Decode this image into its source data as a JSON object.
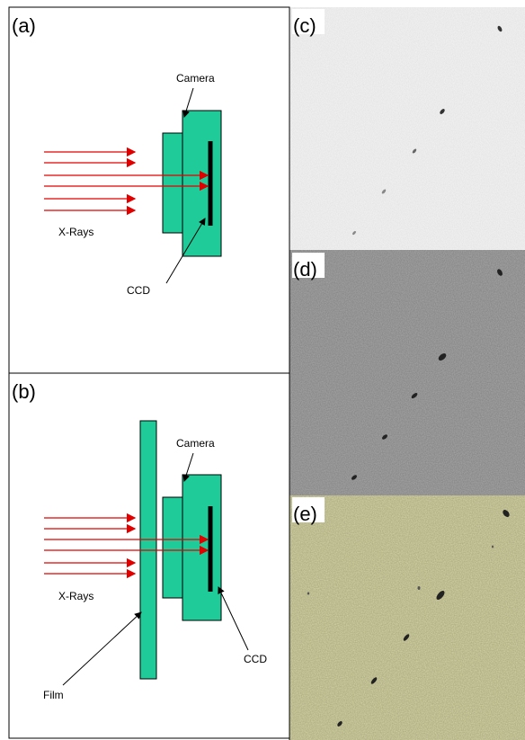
{
  "panel_a": {
    "label": "(a)",
    "camera": "Camera",
    "x_rays": "X-Rays",
    "ccd": "CCD"
  },
  "panel_b": {
    "label": "(b)",
    "camera": "Camera",
    "x_rays": "X-Rays",
    "film": "Film",
    "ccd": "CCD"
  },
  "panel_c": {
    "label": "(c)"
  },
  "panel_d": {
    "label": "(d)"
  },
  "panel_e": {
    "label": "(e)"
  }
}
